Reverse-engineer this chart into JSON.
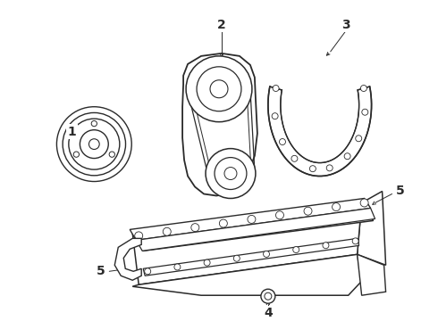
{
  "bg_color": "#ffffff",
  "line_color": "#2a2a2a",
  "label_fontsize": 10,
  "label_fontweight": "bold",
  "fig_w": 4.9,
  "fig_h": 3.6,
  "dpi": 100
}
